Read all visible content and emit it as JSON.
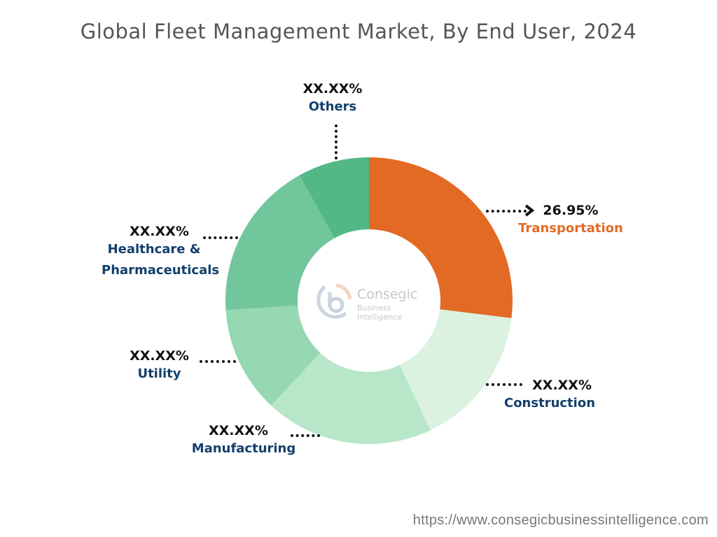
{
  "title": "Global Fleet Management Market, By End User, 2024",
  "url": "https://www.consegicbusinessintelligence.com",
  "logo": {
    "name": "Consegic",
    "tagline": "Business Intelligence"
  },
  "chart_data": {
    "type": "pie",
    "donut": true,
    "title": "Global Fleet Management Market, By End User, 2024",
    "legend": "none",
    "slices": [
      {
        "name": "Transportation",
        "label": "26.95%",
        "value": 26.95,
        "color": "#E36A25",
        "name_color": "#E36A25"
      },
      {
        "name": "Construction",
        "label": "XX.XX%",
        "value": 16,
        "color": "#DAF2DF",
        "name_color": "#123f6b"
      },
      {
        "name": "Manufacturing",
        "label": "XX.XX%",
        "value": 19,
        "color": "#B8E6C8",
        "name_color": "#123f6b"
      },
      {
        "name": "Utility",
        "label": "XX.XX%",
        "value": 12,
        "color": "#95D8B1",
        "name_color": "#123f6b"
      },
      {
        "name": "Healthcare & Pharmaceuticals",
        "label": "XX.XX%",
        "value": 18,
        "color": "#72C69B",
        "name_color": "#123f6b"
      },
      {
        "name": "Others",
        "label": "XX.XX%",
        "value": 8.05,
        "color": "#52B886",
        "name_color": "#123f6b"
      }
    ]
  }
}
